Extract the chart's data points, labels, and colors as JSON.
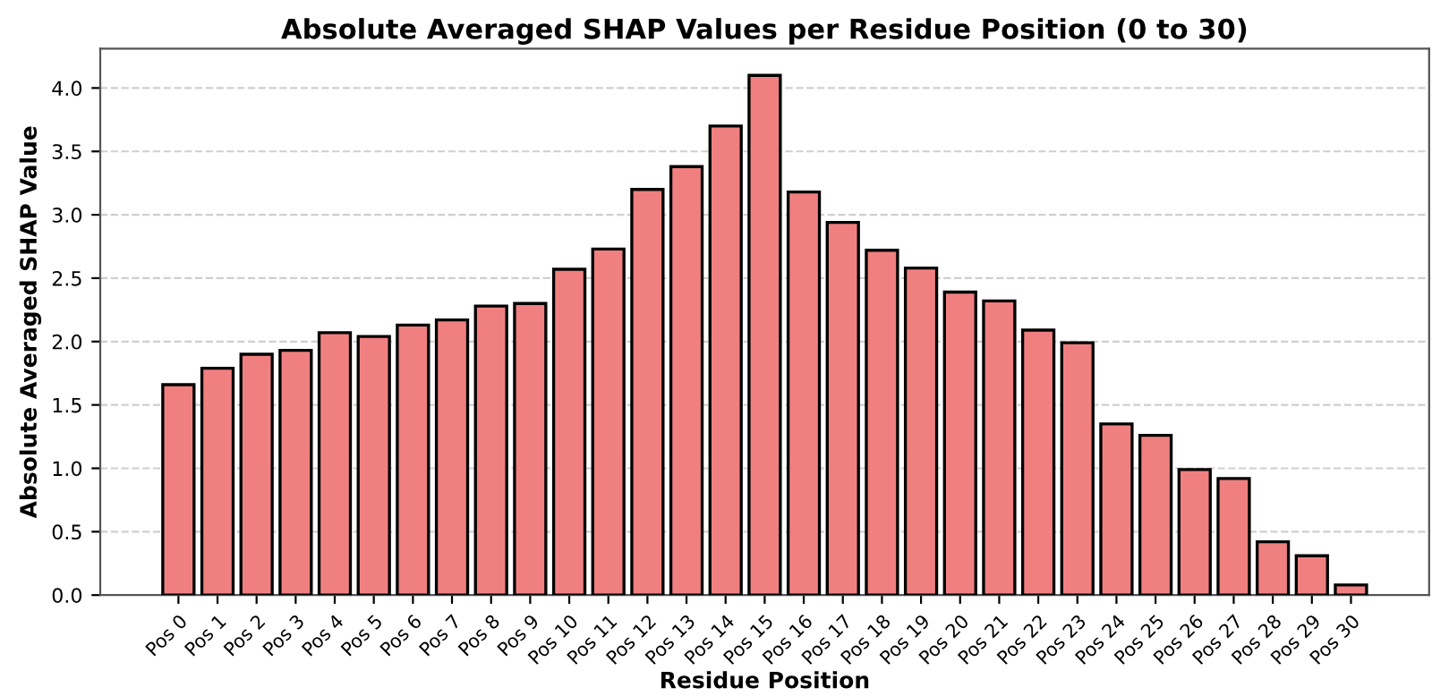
{
  "chart_data": {
    "type": "bar",
    "title": "Absolute Averaged SHAP Values per Residue Position (0 to 30)",
    "xlabel": "Residue Position",
    "ylabel": "Absolute Averaged SHAP Value",
    "categories": [
      "Pos 0",
      "Pos 1",
      "Pos 2",
      "Pos 3",
      "Pos 4",
      "Pos 5",
      "Pos 6",
      "Pos 7",
      "Pos 8",
      "Pos 9",
      "Pos 10",
      "Pos 11",
      "Pos 12",
      "Pos 13",
      "Pos 14",
      "Pos 15",
      "Pos 16",
      "Pos 17",
      "Pos 18",
      "Pos 19",
      "Pos 20",
      "Pos 21",
      "Pos 22",
      "Pos 23",
      "Pos 24",
      "Pos 25",
      "Pos 26",
      "Pos 27",
      "Pos 28",
      "Pos 29",
      "Pos 30"
    ],
    "values": [
      1.66,
      1.79,
      1.9,
      1.93,
      2.07,
      2.04,
      2.13,
      2.17,
      2.28,
      2.3,
      2.57,
      2.73,
      3.2,
      3.38,
      3.7,
      4.1,
      3.18,
      2.94,
      2.72,
      2.58,
      2.39,
      2.32,
      2.09,
      1.99,
      1.35,
      1.26,
      0.99,
      0.92,
      0.42,
      0.31,
      0.08
    ],
    "color": "#f08080",
    "ylim": [
      0,
      4.31
    ],
    "yticks": [
      {
        "value": 0,
        "label": "0.0"
      },
      {
        "value": 0.5,
        "label": "0.5"
      },
      {
        "value": 1,
        "label": "1.0"
      },
      {
        "value": 1.5,
        "label": "1.5"
      },
      {
        "value": 2,
        "label": "2.0"
      },
      {
        "value": 2.5,
        "label": "2.5"
      },
      {
        "value": 3,
        "label": "3.0"
      },
      {
        "value": 3.5,
        "label": "3.5"
      },
      {
        "value": 4,
        "label": "4.0"
      }
    ],
    "grid": "y",
    "line_style": "dashed"
  }
}
